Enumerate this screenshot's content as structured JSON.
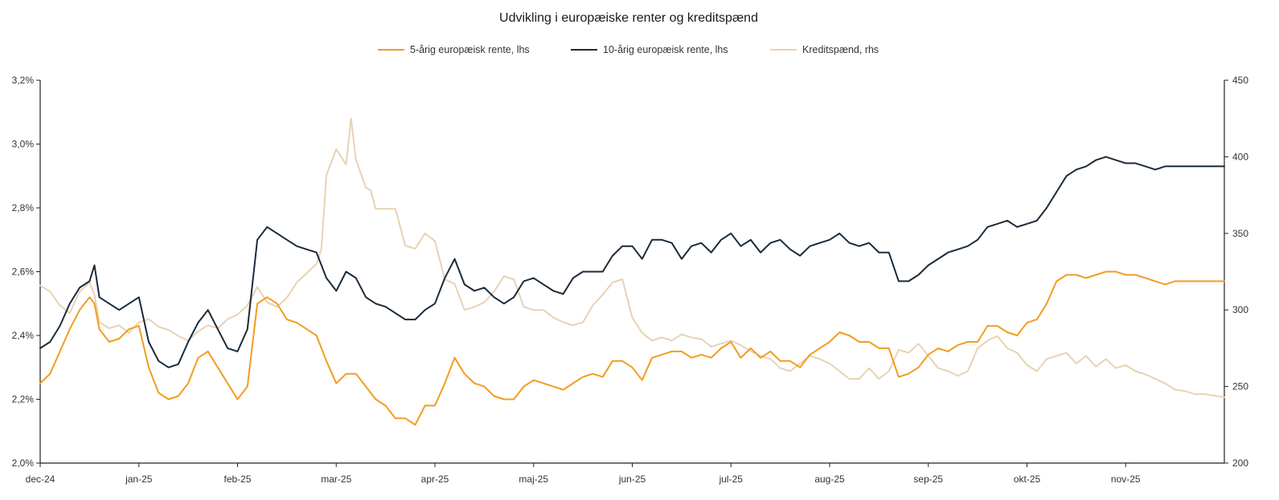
{
  "chart_data": {
    "type": "line",
    "title": "Udvikling i europæiske renter og kreditspænd",
    "x_tick_labels": [
      "dec-24",
      "jan-25",
      "feb-25",
      "mar-25",
      "apr-25",
      "maj-25",
      "jun-25",
      "jul-25",
      "aug-25",
      "sep-25",
      "okt-25",
      "nov-25"
    ],
    "x_range_months": [
      0,
      12
    ],
    "left_axis": {
      "ticks": [
        "2,0%",
        "2,2%",
        "2,4%",
        "2,6%",
        "2,8%",
        "3,0%",
        "3,2%"
      ],
      "min": 2.0,
      "max": 3.2
    },
    "right_axis": {
      "ticks": [
        "200",
        "250",
        "300",
        "350",
        "400",
        "450"
      ],
      "min": 200,
      "max": 450
    },
    "legend": [
      {
        "label": "5-årig europæisk rente, lhs",
        "color": "#f39c1f"
      },
      {
        "label": "10-årig europæisk rente, lhs",
        "color": "#1b2a3a"
      },
      {
        "label": "Kreditspænd, rhs",
        "color": "#e8d2b3"
      }
    ],
    "series": [
      {
        "name": "Kreditspænd, rhs",
        "axis": "right",
        "color": "#e8d2b3",
        "x": [
          0,
          0.1,
          0.2,
          0.3,
          0.4,
          0.5,
          0.55,
          0.6,
          0.7,
          0.8,
          0.9,
          1.0,
          1.1,
          1.2,
          1.3,
          1.4,
          1.5,
          1.6,
          1.7,
          1.8,
          1.9,
          2.0,
          2.1,
          2.2,
          2.3,
          2.4,
          2.5,
          2.6,
          2.7,
          2.8,
          2.85,
          2.9,
          3.0,
          3.1,
          3.15,
          3.2,
          3.3,
          3.35,
          3.4,
          3.45,
          3.5,
          3.6,
          3.7,
          3.8,
          3.9,
          4.0,
          4.1,
          4.2,
          4.3,
          4.4,
          4.5,
          4.6,
          4.7,
          4.8,
          4.9,
          5.0,
          5.1,
          5.2,
          5.3,
          5.4,
          5.5,
          5.6,
          5.7,
          5.8,
          5.9,
          6.0,
          6.1,
          6.2,
          6.3,
          6.4,
          6.5,
          6.6,
          6.7,
          6.8,
          6.9,
          7.0,
          7.1,
          7.2,
          7.3,
          7.4,
          7.5,
          7.6,
          7.7,
          7.8,
          7.9,
          8.0,
          8.1,
          8.2,
          8.3,
          8.4,
          8.5,
          8.6,
          8.7,
          8.8,
          8.9,
          9.0,
          9.1,
          9.2,
          9.3,
          9.4,
          9.5,
          9.6,
          9.7,
          9.8,
          9.9,
          10.0,
          10.1,
          10.2,
          10.3,
          10.4,
          10.5,
          10.6,
          10.7,
          10.8,
          10.9,
          11.0,
          11.1,
          11.2,
          11.3,
          11.4,
          11.5,
          11.6,
          11.7,
          11.8,
          11.9,
          12.0
        ],
        "values": [
          316,
          312,
          303,
          298,
          312,
          318,
          310,
          292,
          288,
          290,
          285,
          292,
          294,
          289,
          287,
          283,
          280,
          286,
          290,
          288,
          294,
          297,
          303,
          315,
          305,
          302,
          308,
          318,
          324,
          330,
          340,
          388,
          405,
          395,
          425,
          398,
          380,
          378,
          366,
          366,
          366,
          366,
          342,
          340,
          350,
          345,
          320,
          317,
          300,
          302,
          305,
          312,
          322,
          320,
          302,
          300,
          300,
          295,
          292,
          290,
          292,
          303,
          310,
          318,
          320,
          295,
          285,
          280,
          282,
          280,
          284,
          282,
          281,
          276,
          278,
          280,
          277,
          273,
          270,
          268,
          262,
          260,
          265,
          270,
          268,
          265,
          260,
          255,
          255,
          262,
          255,
          260,
          274,
          272,
          278,
          270,
          262,
          260,
          257,
          260,
          275,
          280,
          283,
          275,
          272,
          264,
          260,
          268,
          270,
          272,
          265,
          270,
          263,
          268,
          262,
          264,
          260,
          258,
          255,
          252,
          248,
          247,
          245,
          245,
          244,
          243
        ]
      },
      {
        "name": "5-årig europæisk rente, lhs",
        "axis": "left",
        "color": "#f39c1f",
        "x": [
          0,
          0.1,
          0.2,
          0.3,
          0.4,
          0.5,
          0.55,
          0.6,
          0.7,
          0.8,
          0.9,
          1.0,
          1.1,
          1.2,
          1.3,
          1.4,
          1.5,
          1.6,
          1.7,
          1.8,
          1.9,
          2.0,
          2.1,
          2.2,
          2.3,
          2.4,
          2.5,
          2.6,
          2.7,
          2.8,
          2.9,
          3.0,
          3.1,
          3.2,
          3.3,
          3.4,
          3.5,
          3.6,
          3.7,
          3.8,
          3.9,
          4.0,
          4.1,
          4.2,
          4.3,
          4.4,
          4.5,
          4.6,
          4.7,
          4.8,
          4.9,
          5.0,
          5.1,
          5.2,
          5.3,
          5.4,
          5.5,
          5.6,
          5.7,
          5.8,
          5.9,
          6.0,
          6.1,
          6.2,
          6.3,
          6.4,
          6.5,
          6.6,
          6.7,
          6.8,
          6.9,
          7.0,
          7.1,
          7.2,
          7.3,
          7.4,
          7.5,
          7.6,
          7.7,
          7.8,
          7.9,
          8.0,
          8.1,
          8.2,
          8.3,
          8.4,
          8.5,
          8.6,
          8.7,
          8.8,
          8.9,
          9.0,
          9.1,
          9.2,
          9.3,
          9.4,
          9.5,
          9.6,
          9.7,
          9.8,
          9.9,
          10.0,
          10.1,
          10.2,
          10.3,
          10.4,
          10.5,
          10.6,
          10.7,
          10.8,
          10.9,
          11.0,
          11.1,
          11.2,
          11.3,
          11.4,
          11.5,
          11.6,
          11.7,
          11.8,
          11.9,
          12.0
        ],
        "values": [
          2.25,
          2.28,
          2.35,
          2.42,
          2.48,
          2.52,
          2.5,
          2.42,
          2.38,
          2.39,
          2.42,
          2.43,
          2.3,
          2.22,
          2.2,
          2.21,
          2.25,
          2.33,
          2.35,
          2.3,
          2.25,
          2.2,
          2.24,
          2.5,
          2.52,
          2.5,
          2.45,
          2.44,
          2.42,
          2.4,
          2.32,
          2.25,
          2.28,
          2.28,
          2.24,
          2.2,
          2.18,
          2.14,
          2.14,
          2.12,
          2.18,
          2.18,
          2.25,
          2.33,
          2.28,
          2.25,
          2.24,
          2.21,
          2.2,
          2.2,
          2.24,
          2.26,
          2.25,
          2.24,
          2.23,
          2.25,
          2.27,
          2.28,
          2.27,
          2.32,
          2.32,
          2.3,
          2.26,
          2.33,
          2.34,
          2.35,
          2.35,
          2.33,
          2.34,
          2.33,
          2.36,
          2.38,
          2.33,
          2.36,
          2.33,
          2.35,
          2.32,
          2.32,
          2.3,
          2.34,
          2.36,
          2.38,
          2.41,
          2.4,
          2.38,
          2.38,
          2.36,
          2.36,
          2.27,
          2.28,
          2.3,
          2.34,
          2.36,
          2.35,
          2.37,
          2.38,
          2.38,
          2.43,
          2.43,
          2.41,
          2.4,
          2.44,
          2.45,
          2.5,
          2.57,
          2.59,
          2.59,
          2.58,
          2.59,
          2.6,
          2.6,
          2.59,
          2.59,
          2.58,
          2.57,
          2.56,
          2.57,
          2.57,
          2.57,
          2.57,
          2.57,
          2.57
        ]
      },
      {
        "name": "10-årig europæisk rente, lhs",
        "axis": "left",
        "color": "#1b2a3a",
        "x": [
          0,
          0.1,
          0.2,
          0.3,
          0.4,
          0.5,
          0.55,
          0.6,
          0.7,
          0.8,
          0.9,
          1.0,
          1.1,
          1.2,
          1.3,
          1.4,
          1.5,
          1.6,
          1.7,
          1.8,
          1.9,
          2.0,
          2.1,
          2.2,
          2.3,
          2.4,
          2.5,
          2.6,
          2.7,
          2.8,
          2.9,
          3.0,
          3.1,
          3.2,
          3.3,
          3.4,
          3.5,
          3.6,
          3.7,
          3.8,
          3.9,
          4.0,
          4.1,
          4.2,
          4.3,
          4.4,
          4.5,
          4.6,
          4.7,
          4.8,
          4.9,
          5.0,
          5.1,
          5.2,
          5.3,
          5.4,
          5.5,
          5.6,
          5.7,
          5.8,
          5.9,
          6.0,
          6.1,
          6.2,
          6.3,
          6.4,
          6.5,
          6.6,
          6.7,
          6.8,
          6.9,
          7.0,
          7.1,
          7.2,
          7.3,
          7.4,
          7.5,
          7.6,
          7.7,
          7.8,
          7.9,
          8.0,
          8.1,
          8.2,
          8.3,
          8.4,
          8.5,
          8.6,
          8.7,
          8.8,
          8.9,
          9.0,
          9.1,
          9.2,
          9.3,
          9.4,
          9.5,
          9.6,
          9.7,
          9.8,
          9.9,
          10.0,
          10.1,
          10.2,
          10.3,
          10.4,
          10.5,
          10.6,
          10.7,
          10.8,
          10.9,
          11.0,
          11.1,
          11.2,
          11.3,
          11.4,
          11.5,
          11.6,
          11.7,
          11.8,
          11.9,
          12.0
        ],
        "values": [
          2.36,
          2.38,
          2.43,
          2.5,
          2.55,
          2.57,
          2.62,
          2.52,
          2.5,
          2.48,
          2.5,
          2.52,
          2.38,
          2.32,
          2.3,
          2.31,
          2.38,
          2.44,
          2.48,
          2.42,
          2.36,
          2.35,
          2.42,
          2.7,
          2.74,
          2.72,
          2.7,
          2.68,
          2.67,
          2.66,
          2.58,
          2.54,
          2.6,
          2.58,
          2.52,
          2.5,
          2.49,
          2.47,
          2.45,
          2.45,
          2.48,
          2.5,
          2.58,
          2.64,
          2.56,
          2.54,
          2.55,
          2.52,
          2.5,
          2.52,
          2.57,
          2.58,
          2.56,
          2.54,
          2.53,
          2.58,
          2.6,
          2.6,
          2.6,
          2.65,
          2.68,
          2.68,
          2.64,
          2.7,
          2.7,
          2.69,
          2.64,
          2.68,
          2.69,
          2.66,
          2.7,
          2.72,
          2.68,
          2.7,
          2.66,
          2.69,
          2.7,
          2.67,
          2.65,
          2.68,
          2.69,
          2.7,
          2.72,
          2.69,
          2.68,
          2.69,
          2.66,
          2.66,
          2.57,
          2.57,
          2.59,
          2.62,
          2.64,
          2.66,
          2.67,
          2.68,
          2.7,
          2.74,
          2.75,
          2.76,
          2.74,
          2.75,
          2.76,
          2.8,
          2.85,
          2.9,
          2.92,
          2.93,
          2.95,
          2.96,
          2.95,
          2.94,
          2.94,
          2.93,
          2.92,
          2.93,
          2.93,
          2.93,
          2.93,
          2.93,
          2.93,
          2.93
        ]
      }
    ]
  }
}
